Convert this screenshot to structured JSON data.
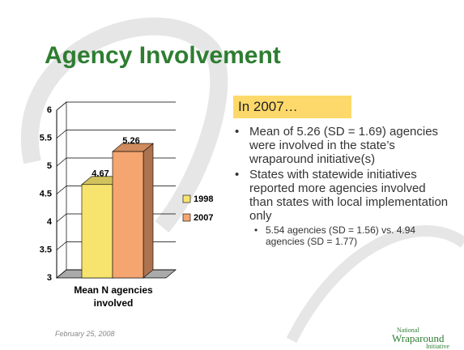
{
  "title": "Agency Involvement",
  "chart_data": {
    "type": "bar",
    "categories": [
      "Mean N agencies involved"
    ],
    "series": [
      {
        "name": "1998",
        "color": "#f7e46e",
        "values": [
          4.67
        ]
      },
      {
        "name": "2007",
        "color": "#f5a56f",
        "values": [
          5.26
        ]
      }
    ],
    "ylim": [
      3,
      6
    ],
    "yticks": [
      3,
      3.5,
      4,
      4.5,
      5,
      5.5,
      6
    ],
    "grid": true,
    "legend": "right"
  },
  "panel": {
    "heading": "In 2007…",
    "bullets": [
      "Mean of 5.26 (SD = 1.69) agencies were involved in the state’s wraparound initiative(s)",
      "States with statewide initiatives reported more agencies involved than states with local implementation only"
    ],
    "subbullets": [
      "5.54 agencies (SD = 1.56) vs. 4.94 agencies (SD = 1.77)"
    ]
  },
  "footer": {
    "date": "February 25, 2008",
    "logo_top": "National",
    "logo_main": "Wraparound",
    "logo_bottom": "Initiative"
  }
}
